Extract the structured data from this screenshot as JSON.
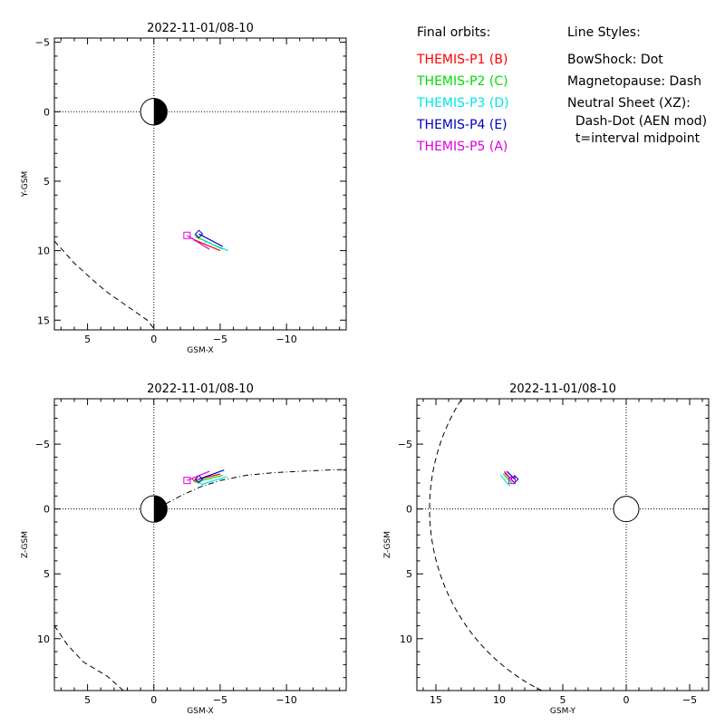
{
  "legend": {
    "orbits_title": "Final orbits:",
    "probes": [
      {
        "label": "THEMIS-P1 (B)",
        "color": "#ff0000"
      },
      {
        "label": "THEMIS-P2 (C)",
        "color": "#00dd00"
      },
      {
        "label": "THEMIS-P3 (D)",
        "color": "#00e5e5"
      },
      {
        "label": "THEMIS-P4 (E)",
        "color": "#0000c0"
      },
      {
        "label": "THEMIS-P5 (A)",
        "color": "#dd00dd"
      }
    ],
    "styles_title": "Line Styles:",
    "styles": [
      "BowShock: Dot",
      "Magnetopause: Dash",
      "Neutral Sheet (XZ):",
      "  Dash-Dot (AEN mod)",
      "  t=interval midpoint"
    ]
  },
  "chart_data": [
    {
      "type": "line",
      "title": "2022-11-01/08-10",
      "xlabel": "GSM-X",
      "ylabel": "Y-GSM",
      "xlim": [
        7.5,
        -14.5
      ],
      "ylim": [
        -5.3,
        15.7
      ],
      "xticks": [
        5,
        0,
        -5,
        -10
      ],
      "yticks": [
        -5,
        0,
        5,
        10,
        15
      ],
      "grid": "dotted axes at 0",
      "earth": {
        "x": 0,
        "y": 0,
        "r": 1,
        "night_side": "negative-x"
      },
      "boundaries": [
        {
          "name": "Magnetopause",
          "style": "dash",
          "x": [
            7.5,
            6.0,
            4.5,
            3.5,
            2.0,
            0.5,
            0.0
          ],
          "y": [
            9.3,
            10.9,
            12.2,
            13.0,
            14.0,
            15.0,
            15.6
          ]
        }
      ],
      "series": [
        {
          "name": "THEMIS-P1 (B)",
          "color": "#ff0000",
          "x": [
            -3.0,
            -5.0
          ],
          "y": [
            9.2,
            10.0
          ]
        },
        {
          "name": "THEMIS-P2 (C)",
          "color": "#00dd00",
          "x": [
            -3.2,
            -5.2
          ],
          "y": [
            9.0,
            9.9
          ]
        },
        {
          "name": "THEMIS-P3 (D)",
          "color": "#00e5e5",
          "x": [
            -3.8,
            -5.6
          ],
          "y": [
            9.3,
            10.0
          ]
        },
        {
          "name": "THEMIS-P4 (E)",
          "color": "#0000c0",
          "x": [
            -3.4,
            -5.2
          ],
          "y": [
            8.8,
            9.7
          ],
          "marker": "diamond"
        },
        {
          "name": "THEMIS-P5 (A)",
          "color": "#dd00dd",
          "x": [
            -2.5,
            -4.2
          ],
          "y": [
            8.9,
            9.9
          ],
          "marker": "square"
        }
      ]
    },
    {
      "type": "line",
      "title": "2022-11-01/08-10",
      "xlabel": "GSM-X",
      "ylabel": "Z-GSM",
      "xlim": [
        7.5,
        -14.5
      ],
      "ylim": [
        -8.5,
        14.0
      ],
      "xticks": [
        5,
        0,
        -5,
        -10
      ],
      "yticks": [
        -5,
        0,
        5,
        10
      ],
      "grid": "dotted axes at 0",
      "earth": {
        "x": 0,
        "y": 0,
        "r": 1,
        "night_side": "negative-x"
      },
      "boundaries": [
        {
          "name": "Magnetopause",
          "style": "dash",
          "x": [
            7.5,
            6.5,
            5.3,
            3.5,
            2.3
          ],
          "y": [
            9.0,
            10.5,
            11.8,
            12.9,
            14.0
          ]
        },
        {
          "name": "Neutral Sheet",
          "style": "dashdot",
          "x": [
            -0.9,
            -2.0,
            -3.5,
            -5.0,
            -7.0,
            -9.0,
            -11.0,
            -13.0,
            -14.5
          ],
          "y": [
            -0.4,
            -1.0,
            -1.7,
            -2.2,
            -2.6,
            -2.8,
            -2.9,
            -3.0,
            -3.05
          ]
        }
      ],
      "series": [
        {
          "name": "THEMIS-P1 (B)",
          "color": "#ff0000",
          "x": [
            -3.0,
            -5.0
          ],
          "y": [
            -2.2,
            -2.7
          ]
        },
        {
          "name": "THEMIS-P2 (C)",
          "color": "#00dd00",
          "x": [
            -3.2,
            -5.2
          ],
          "y": [
            -2.1,
            -2.6
          ]
        },
        {
          "name": "THEMIS-P3 (D)",
          "color": "#00e5e5",
          "x": [
            -3.6,
            -5.5
          ],
          "y": [
            -1.9,
            -2.5
          ]
        },
        {
          "name": "THEMIS-P4 (E)",
          "color": "#0000c0",
          "x": [
            -3.4,
            -5.3
          ],
          "y": [
            -2.3,
            -3.0
          ],
          "marker": "diamond"
        },
        {
          "name": "THEMIS-P5 (A)",
          "color": "#dd00dd",
          "x": [
            -2.5,
            -4.2
          ],
          "y": [
            -2.2,
            -2.9
          ],
          "marker": "square"
        }
      ]
    },
    {
      "type": "line",
      "title": "2022-11-01/08-10",
      "xlabel": "GSM-Y",
      "ylabel": "Z-GSM",
      "xlim": [
        16.5,
        -6.5
      ],
      "ylim": [
        -8.5,
        14.0
      ],
      "xticks": [
        15,
        10,
        5,
        0,
        -5
      ],
      "yticks": [
        -5,
        0,
        5,
        10
      ],
      "grid": "dotted axes at 0",
      "earth": {
        "x": 0,
        "y": 0,
        "r": 1,
        "night_side": "none"
      },
      "boundaries": [
        {
          "name": "Magnetopause",
          "style": "dash",
          "circle": {
            "cx": 0,
            "cy": 0,
            "r": 15.5
          }
        }
      ],
      "series": [
        {
          "name": "THEMIS-P1 (B)",
          "color": "#ff0000",
          "x": [
            9.0,
            9.6
          ],
          "y": [
            -2.2,
            -2.8
          ]
        },
        {
          "name": "THEMIS-P2 (C)",
          "color": "#00dd00",
          "x": [
            9.1,
            9.7
          ],
          "y": [
            -2.1,
            -2.7
          ]
        },
        {
          "name": "THEMIS-P3 (D)",
          "color": "#00e5e5",
          "x": [
            9.3,
            9.9
          ],
          "y": [
            -1.9,
            -2.6
          ]
        },
        {
          "name": "THEMIS-P4 (E)",
          "color": "#0000c0",
          "x": [
            8.8,
            9.4
          ],
          "y": [
            -2.3,
            -2.9
          ],
          "marker": "diamond"
        },
        {
          "name": "THEMIS-P5 (A)",
          "color": "#dd00dd",
          "x": [
            9.0,
            9.6
          ],
          "y": [
            -2.2,
            -2.9
          ],
          "marker": "square"
        }
      ]
    }
  ]
}
